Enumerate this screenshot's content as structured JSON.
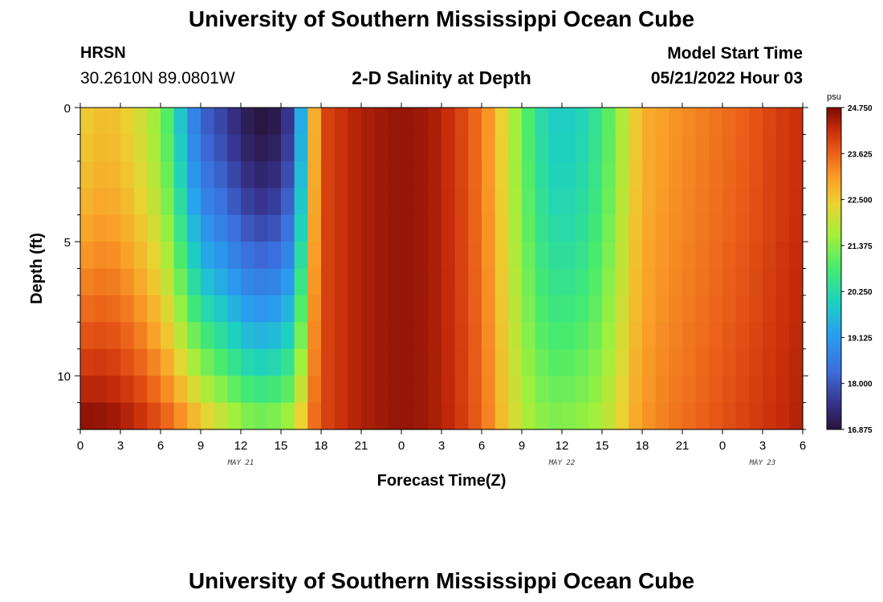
{
  "header": {
    "title": "University of Southern Mississippi Ocean Cube",
    "station": "HRSN",
    "coordinates": "30.2610N  89.0801W",
    "subtitle": "2-D Salinity at Depth",
    "model_start_label": "Model Start Time",
    "model_start_value": "05/21/2022 Hour 03"
  },
  "footer": {
    "title": "University of Southern Mississippi Ocean Cube"
  },
  "chart_data": {
    "type": "heatmap",
    "title": "2-D Salinity at Depth",
    "xlabel": "Forecast Time(Z)",
    "ylabel": "Depth (ft)",
    "x_range_hours": [
      0,
      54
    ],
    "x_ticks": [
      {
        "h": 0,
        "label": "0"
      },
      {
        "h": 3,
        "label": "3"
      },
      {
        "h": 6,
        "label": "6"
      },
      {
        "h": 9,
        "label": "9"
      },
      {
        "h": 12,
        "label": "12"
      },
      {
        "h": 15,
        "label": "15"
      },
      {
        "h": 18,
        "label": "18"
      },
      {
        "h": 21,
        "label": "21"
      },
      {
        "h": 24,
        "label": "0"
      },
      {
        "h": 27,
        "label": "3"
      },
      {
        "h": 30,
        "label": "6"
      },
      {
        "h": 33,
        "label": "9"
      },
      {
        "h": 36,
        "label": "12"
      },
      {
        "h": 39,
        "label": "15"
      },
      {
        "h": 42,
        "label": "18"
      },
      {
        "h": 45,
        "label": "21"
      },
      {
        "h": 48,
        "label": "0"
      },
      {
        "h": 51,
        "label": "3"
      },
      {
        "h": 54,
        "label": "6"
      }
    ],
    "date_labels": [
      {
        "h": 12,
        "label": "MAY 21"
      },
      {
        "h": 36,
        "label": "MAY 22"
      },
      {
        "h": 51,
        "label": "MAY 23"
      }
    ],
    "y_range_ft": [
      0,
      12
    ],
    "y_ticks": [
      {
        "v": 0,
        "label": "0"
      },
      {
        "v": 5,
        "label": "5"
      },
      {
        "v": 10,
        "label": "10"
      }
    ],
    "colorbar": {
      "unit": "psu",
      "min": 16.875,
      "max": 24.75,
      "tick_labels": [
        "24.750",
        "23.625",
        "22.500",
        "21.375",
        "20.250",
        "19.125",
        "18.000",
        "16.875"
      ],
      "tick_values": [
        24.75,
        23.625,
        22.5,
        21.375,
        20.25,
        19.125,
        18.0,
        16.875
      ]
    },
    "time_step_hours": 1,
    "depth_step_ft": 1,
    "profiles": {
      "note": "salinity (psu) vs hour, surface row and bottom row; layers between interpolated",
      "hours": [
        0,
        2,
        4,
        6,
        7,
        8,
        9,
        10,
        11,
        12,
        13,
        14,
        15,
        16,
        16.5,
        17,
        18,
        21,
        24,
        26,
        28,
        30,
        31,
        32,
        33,
        34,
        35,
        36,
        37,
        38,
        39,
        40,
        41,
        42,
        44,
        46,
        48,
        50,
        52,
        54
      ],
      "surface": [
        22.4,
        22.7,
        22.3,
        21.4,
        20.4,
        19.2,
        18.2,
        17.9,
        17.6,
        17.2,
        16.9,
        16.9,
        17.1,
        17.9,
        19.4,
        21.8,
        23.9,
        24.4,
        24.6,
        24.5,
        24.1,
        23.4,
        22.8,
        22.0,
        21.2,
        20.5,
        20.0,
        19.9,
        20.0,
        20.2,
        20.7,
        21.3,
        22.2,
        22.8,
        23.1,
        23.3,
        23.5,
        23.7,
        24.0,
        24.2
      ],
      "bottom": [
        24.75,
        24.7,
        24.4,
        23.9,
        23.6,
        23.2,
        22.8,
        22.4,
        22.1,
        21.7,
        21.5,
        21.5,
        21.7,
        22.0,
        22.6,
        23.2,
        23.9,
        24.4,
        24.6,
        24.5,
        24.2,
        23.6,
        23.0,
        22.4,
        21.9,
        21.6,
        21.4,
        21.4,
        21.5,
        21.6,
        21.8,
        22.2,
        22.7,
        23.1,
        23.4,
        23.6,
        23.8,
        24.0,
        24.2,
        24.4
      ]
    }
  }
}
